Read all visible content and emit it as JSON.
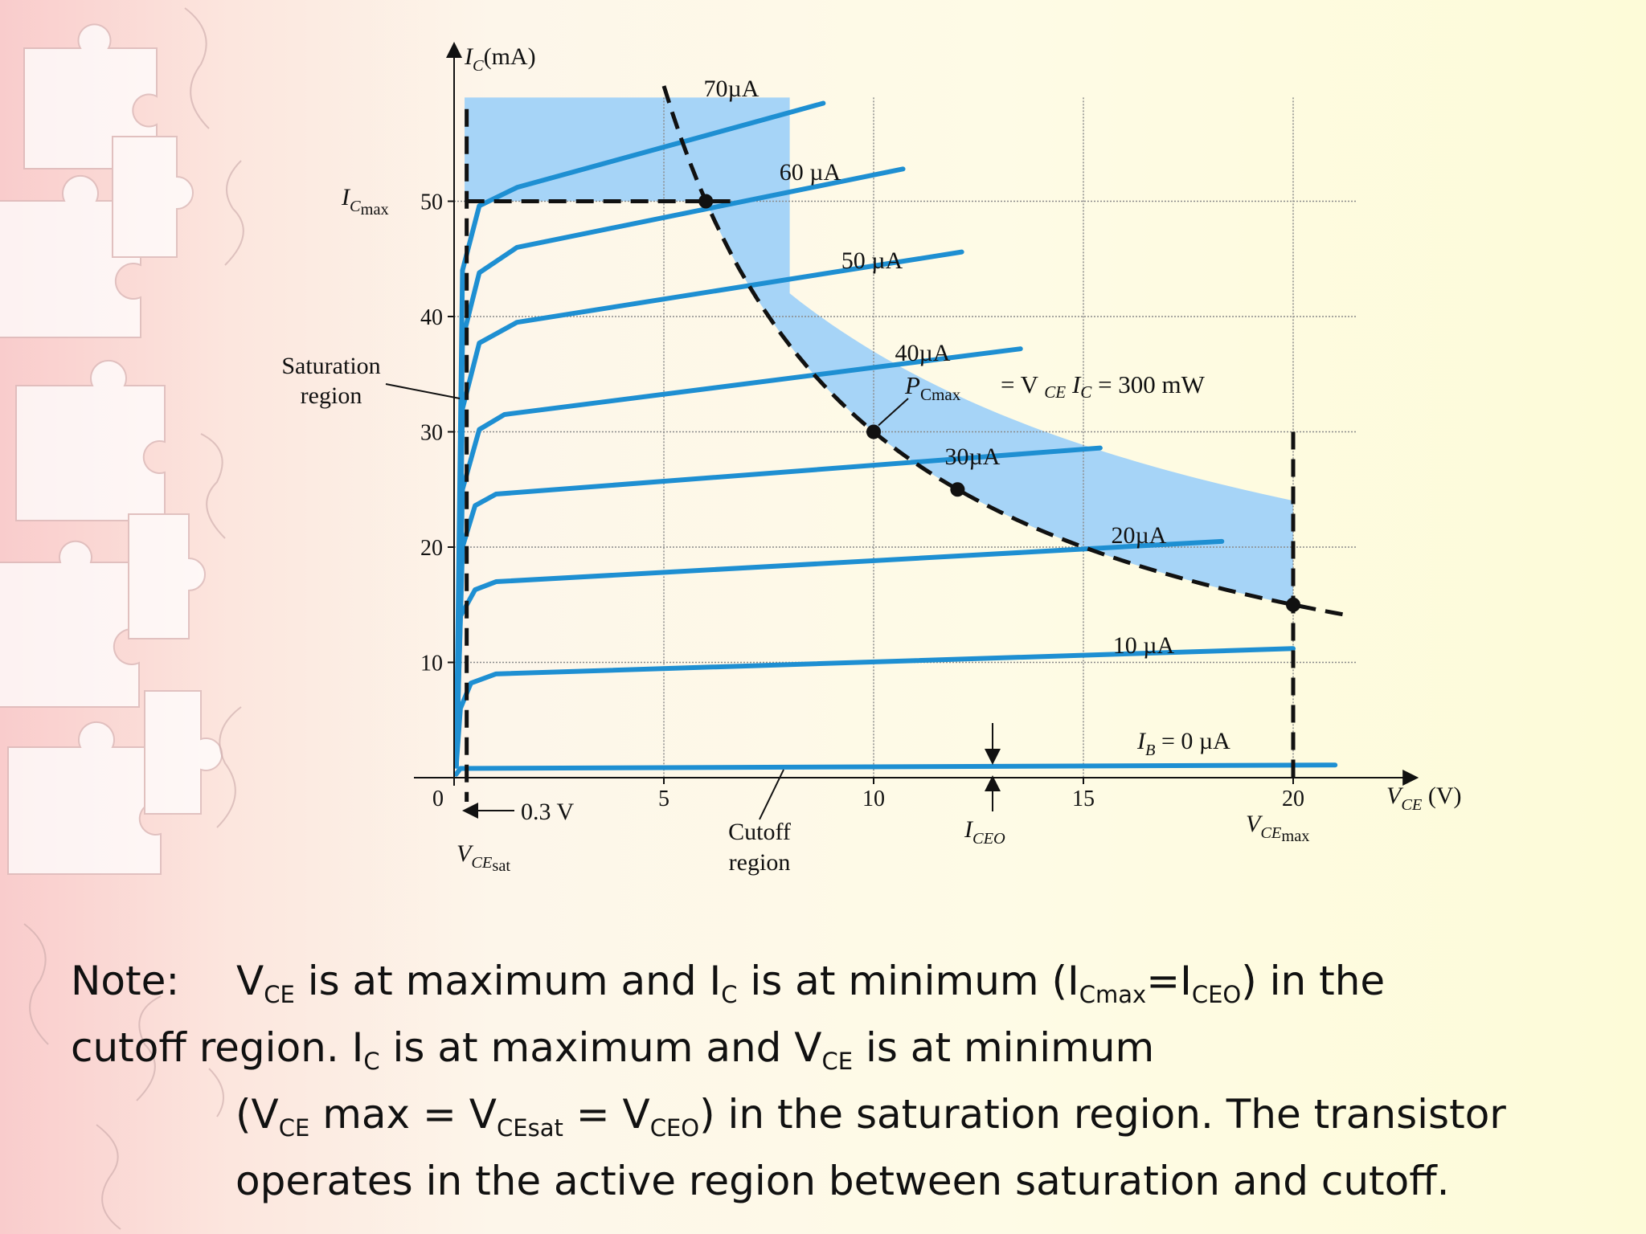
{
  "chart_data": {
    "type": "line",
    "title": "",
    "xlabel": "V_CE (V)",
    "ylabel": "I_C (mA)",
    "xlim": [
      0,
      23
    ],
    "ylim": [
      0,
      59
    ],
    "x_ticks": [
      0,
      5,
      10,
      15,
      20
    ],
    "y_ticks": [
      10,
      20,
      30,
      40,
      50
    ],
    "grid": true,
    "series": [
      {
        "name": "IB = 0 µA",
        "label": "I_B = 0 µA",
        "ib_uA": 0,
        "x": [
          0.05,
          0.15,
          21.0
        ],
        "y": [
          0.3,
          0.8,
          1.1
        ]
      },
      {
        "name": "10 µA",
        "label": "10 µA",
        "ib_uA": 10,
        "x": [
          0.05,
          0.15,
          0.4,
          1,
          20
        ],
        "y": [
          1,
          6,
          8.2,
          9,
          11.2
        ]
      },
      {
        "name": "20 µA",
        "label": "20µA",
        "ib_uA": 20,
        "x": [
          0.05,
          0.15,
          0.5,
          1,
          18.3
        ],
        "y": [
          1,
          14,
          16.3,
          17,
          20.5
        ]
      },
      {
        "name": "30 µA",
        "label": "30µA",
        "ib_uA": 30,
        "x": [
          0.05,
          0.2,
          0.5,
          1,
          15.4
        ],
        "y": [
          1,
          20,
          23.6,
          24.6,
          28.6
        ]
      },
      {
        "name": "40 µA",
        "label": "40µA",
        "ib_uA": 40,
        "x": [
          0.05,
          0.2,
          0.6,
          1.2,
          13.5
        ],
        "y": [
          1,
          25,
          30.2,
          31.5,
          37.2
        ]
      },
      {
        "name": "50 µA",
        "label": "50 µA",
        "ib_uA": 50,
        "x": [
          0.05,
          0.2,
          0.6,
          1.5,
          12.1
        ],
        "y": [
          1,
          32,
          37.7,
          39.5,
          45.6
        ]
      },
      {
        "name": "60 µA",
        "label": "60 µA",
        "ib_uA": 60,
        "x": [
          0.05,
          0.2,
          0.6,
          1.5,
          10.7
        ],
        "y": [
          1,
          38,
          43.8,
          46,
          52.8
        ]
      },
      {
        "name": "70 µA",
        "label": "70µA",
        "ib_uA": 70,
        "x": [
          0.05,
          0.2,
          0.6,
          1.5,
          8.8
        ],
        "y": [
          1,
          44,
          49.6,
          51.2,
          58.5
        ]
      }
    ],
    "pmax_curve": {
      "label_p": "P",
      "label_sub": "Cmax",
      "label_eq": "= V",
      "label_ce": "CE",
      "label_ic": " I",
      "label_c": "C",
      "label_tail": "= 300 mW",
      "power_mw": 300,
      "x_range": [
        5.0,
        21.4
      ]
    },
    "limits": {
      "icmax_ma": 50,
      "vcemax_v": 20,
      "vcesat_v": 0.3
    },
    "points": [
      {
        "x": 6,
        "y": 50
      },
      {
        "x": 10,
        "y": 30
      },
      {
        "x": 12,
        "y": 25
      },
      {
        "x": 20,
        "y": 15
      }
    ],
    "annotations": {
      "ic_max": "I",
      "ic_max_sub": "C",
      "ic_max_sub2": "max",
      "sat_region_1": "Saturation",
      "sat_region_2": "region",
      "cutoff_1": "Cutoff",
      "cutoff_2": "region",
      "vce_sat_v": "V",
      "vce_sat_sub": "CE",
      "vce_sat_sub2": "sat",
      "v03": "0.3 V",
      "iceo_i": "I",
      "iceo_sub": "CEO",
      "vcemax_v": "V",
      "vcemax_sub": "CE",
      "vcemax_sub2": "max",
      "x_axis_v": "V",
      "x_axis_sub": "CE",
      "x_axis_unit": "(V)",
      "y_axis_i": "I",
      "y_axis_sub": "C",
      "y_axis_unit": "(mA)",
      "ib_label_i": "I",
      "ib_label_sub": "B",
      "ib_label_tail": "= 0 µA"
    },
    "colors": {
      "curve": "#1e8fd2",
      "region": "#a6d4f7",
      "dashed": "#111111",
      "grid": "#8a8a8a"
    }
  },
  "note": {
    "label": "Note:",
    "v": "V",
    "ce": "CE",
    "t1": " is at maximum and I",
    "c1": "C",
    "t2": " is at minimum (I",
    "cmax": "Cmax",
    "t3": "=I",
    "ceo1": "CEO",
    "t4": ") in the",
    "t5": "cutoff region. I",
    "c2": "C",
    "t6": " is at maximum and V",
    "ce2": "CE",
    "t7": " is at minimum",
    "t8": "(V",
    "ce3": "CE",
    "t9": " max = V",
    "cesat": "CEsat",
    "t10": " = V",
    "ceo2": "CEO",
    "t11": ") in the saturation region. The transistor",
    "t12": "operates in the active region between saturation and cutoff."
  }
}
